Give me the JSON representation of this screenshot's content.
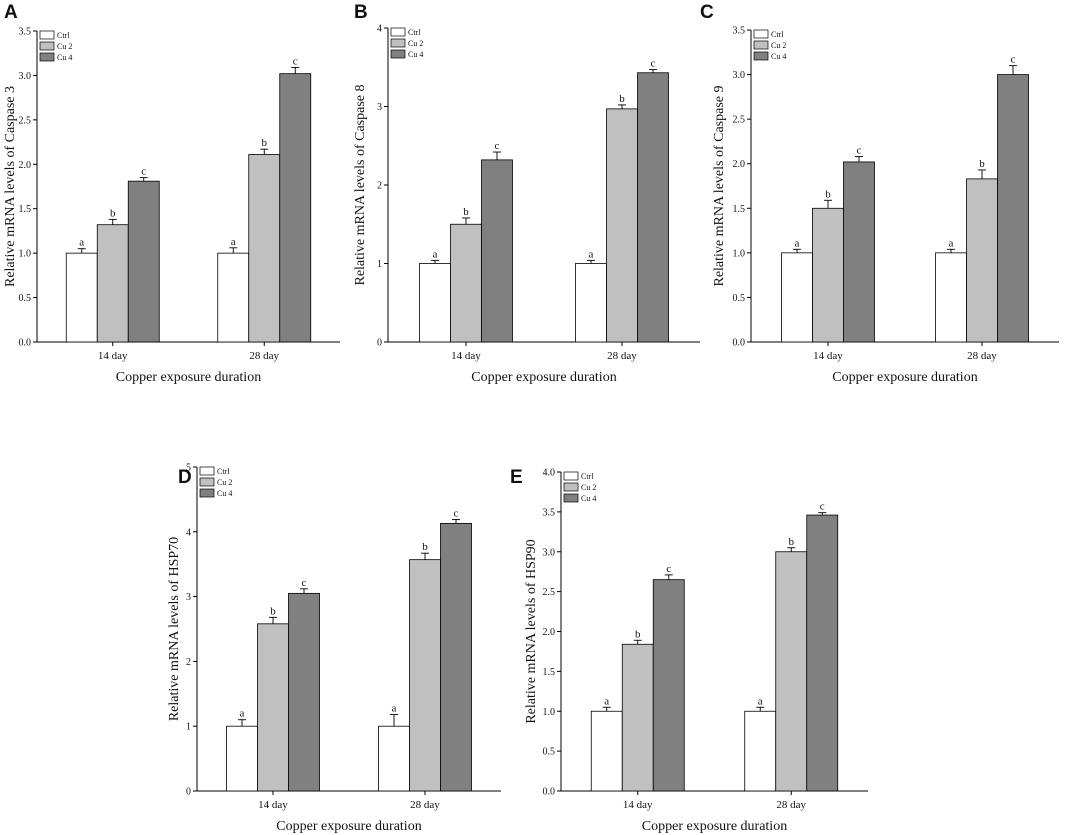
{
  "colors": {
    "Ctrl": "#ffffff",
    "Cu 2": "#c0c0c0",
    "Cu 4": "#808080"
  },
  "chart_data": [
    {
      "panel": "A",
      "type": "bar",
      "categories": [
        "14 day",
        "28 day"
      ],
      "xlabel": "Copper exposure duration",
      "ylabel": "Relative mRNA levels of Caspase 3",
      "ylim": [
        0,
        3.5
      ],
      "yticks": [
        "0.0",
        "0.5",
        "1.0",
        "1.5",
        "2.0",
        "2.5",
        "3.0",
        "3.5"
      ],
      "legend": [
        "Ctrl",
        "Cu 2",
        "Cu 4"
      ],
      "series": [
        {
          "name": "Ctrl",
          "values": [
            1.0,
            1.0
          ],
          "errors": [
            0.05,
            0.06
          ],
          "labels": [
            "a",
            "a"
          ]
        },
        {
          "name": "Cu 2",
          "values": [
            1.32,
            2.11
          ],
          "errors": [
            0.06,
            0.06
          ],
          "labels": [
            "b",
            "b"
          ]
        },
        {
          "name": "Cu 4",
          "values": [
            1.81,
            3.02
          ],
          "errors": [
            0.04,
            0.07
          ],
          "labels": [
            "c",
            "c"
          ]
        }
      ]
    },
    {
      "panel": "B",
      "type": "bar",
      "categories": [
        "14 day",
        "28 day"
      ],
      "xlabel": "Copper exposure duration",
      "ylabel": "Relative mRNA levels of Caspase 8",
      "ylim": [
        0,
        4
      ],
      "yticks": [
        "0",
        "1",
        "2",
        "3",
        "4"
      ],
      "legend": [
        "Ctrl",
        "Cu 2",
        "Cu 4"
      ],
      "series": [
        {
          "name": "Ctrl",
          "values": [
            1.0,
            1.0
          ],
          "errors": [
            0.04,
            0.04
          ],
          "labels": [
            "a",
            "a"
          ]
        },
        {
          "name": "Cu 2",
          "values": [
            1.5,
            2.97
          ],
          "errors": [
            0.08,
            0.05
          ],
          "labels": [
            "b",
            "b"
          ]
        },
        {
          "name": "Cu 4",
          "values": [
            2.32,
            3.43
          ],
          "errors": [
            0.1,
            0.04
          ],
          "labels": [
            "c",
            "c"
          ]
        }
      ]
    },
    {
      "panel": "C",
      "type": "bar",
      "categories": [
        "14 day",
        "28 day"
      ],
      "xlabel": "Copper exposure duration",
      "ylabel": "Relative mRNA levels of Caspase 9",
      "ylim": [
        0,
        3.5
      ],
      "yticks": [
        "0.0",
        "0.5",
        "1.0",
        "1.5",
        "2.0",
        "2.5",
        "3.0",
        "3.5"
      ],
      "legend": [
        "Ctrl",
        "Cu 2",
        "Cu 4"
      ],
      "series": [
        {
          "name": "Ctrl",
          "values": [
            1.0,
            1.0
          ],
          "errors": [
            0.04,
            0.04
          ],
          "labels": [
            "a",
            "a"
          ]
        },
        {
          "name": "Cu 2",
          "values": [
            1.5,
            1.83
          ],
          "errors": [
            0.09,
            0.1
          ],
          "labels": [
            "b",
            "b"
          ]
        },
        {
          "name": "Cu 4",
          "values": [
            2.02,
            3.0
          ],
          "errors": [
            0.06,
            0.1
          ],
          "labels": [
            "c",
            "c"
          ]
        }
      ]
    },
    {
      "panel": "D",
      "type": "bar",
      "categories": [
        "14 day",
        "28 day"
      ],
      "xlabel": "Copper exposure duration",
      "ylabel": "Relative mRNA levels of HSP70",
      "ylim": [
        0,
        5
      ],
      "yticks": [
        "0",
        "1",
        "2",
        "3",
        "4",
        "5"
      ],
      "legend": [
        "Ctrl",
        "Cu 2",
        "Cu 4"
      ],
      "series": [
        {
          "name": "Ctrl",
          "values": [
            1.0,
            1.0
          ],
          "errors": [
            0.1,
            0.18
          ],
          "labels": [
            "a",
            "a"
          ]
        },
        {
          "name": "Cu 2",
          "values": [
            2.58,
            3.57
          ],
          "errors": [
            0.1,
            0.1
          ],
          "labels": [
            "b",
            "b"
          ]
        },
        {
          "name": "Cu 4",
          "values": [
            3.05,
            4.13
          ],
          "errors": [
            0.07,
            0.06
          ],
          "labels": [
            "c",
            "c"
          ]
        }
      ]
    },
    {
      "panel": "E",
      "type": "bar",
      "categories": [
        "14 day",
        "28 day"
      ],
      "xlabel": "Copper exposure duration",
      "ylabel": "Relative mRNA levels of HSP90",
      "ylim": [
        0,
        4
      ],
      "yticks": [
        "0.0",
        "0.5",
        "1.0",
        "1.5",
        "2.0",
        "2.5",
        "3.0",
        "3.5",
        "4.0"
      ],
      "legend": [
        "Ctrl",
        "Cu 2",
        "Cu 4"
      ],
      "series": [
        {
          "name": "Ctrl",
          "values": [
            1.0,
            1.0
          ],
          "errors": [
            0.05,
            0.05
          ],
          "labels": [
            "a",
            "a"
          ]
        },
        {
          "name": "Cu 2",
          "values": [
            1.84,
            3.0
          ],
          "errors": [
            0.05,
            0.05
          ],
          "labels": [
            "b",
            "b"
          ]
        },
        {
          "name": "Cu 4",
          "values": [
            2.65,
            3.46
          ],
          "errors": [
            0.06,
            0.03
          ],
          "labels": [
            "c",
            "c"
          ]
        }
      ]
    }
  ]
}
